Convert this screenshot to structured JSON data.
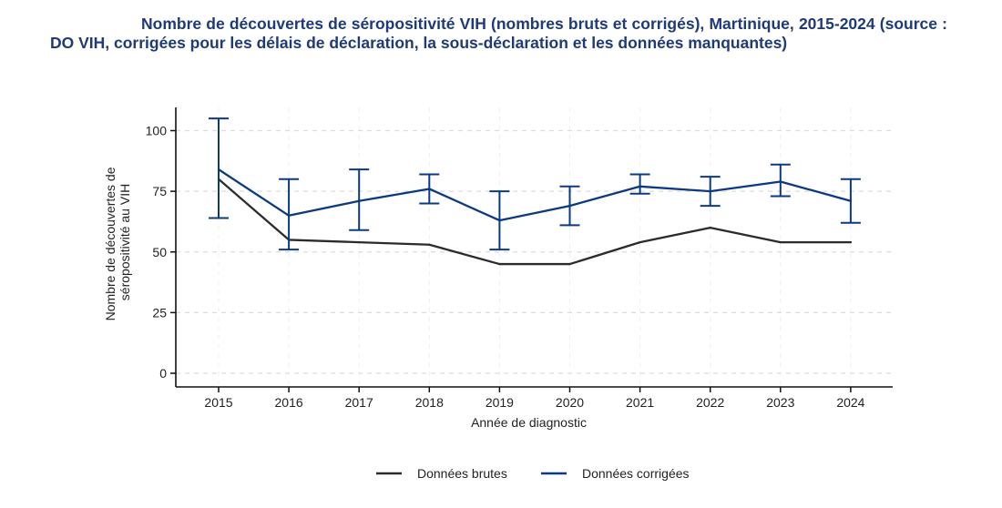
{
  "title": "Nombre de découvertes de séropositivité VIH (nombres bruts et corrigés), Martinique, 2015-2024 (source : DO VIH, corrigées pour les délais de déclaration, la sous-déclaration et les données manquantes)",
  "colors": {
    "brutes": "#2b2b2b",
    "corrigees": "#0b3a82",
    "grid": "#dcdcdc",
    "axis": "#111111"
  },
  "chart_data": {
    "type": "line",
    "xlabel": "Année de diagnostic",
    "ylabel_lines": [
      "Nombre de découvertes de",
      "séropositivité au VIH"
    ],
    "ylim": [
      0,
      110
    ],
    "yticks": [
      0,
      25,
      50,
      75,
      100
    ],
    "categories": [
      "2015",
      "2016",
      "2017",
      "2018",
      "2019",
      "2020",
      "2021",
      "2022",
      "2023",
      "2024"
    ],
    "series": [
      {
        "name": "Données brutes",
        "color": "#2b2b2b",
        "values": [
          80,
          55,
          54,
          53,
          45,
          45,
          54,
          60,
          54,
          54
        ]
      },
      {
        "name": "Données corrigées",
        "color": "#0b3a82",
        "values": [
          84,
          65,
          71,
          76,
          63,
          69,
          77,
          75,
          79,
          71
        ],
        "lower": [
          64,
          51,
          59,
          70,
          51,
          61,
          74,
          69,
          73,
          62
        ],
        "upper": [
          105,
          80,
          84,
          82,
          75,
          77,
          82,
          81,
          86,
          80
        ]
      }
    ],
    "legend": {
      "position": "bottom",
      "items": [
        "Données brutes",
        "Données corrigées"
      ]
    }
  }
}
